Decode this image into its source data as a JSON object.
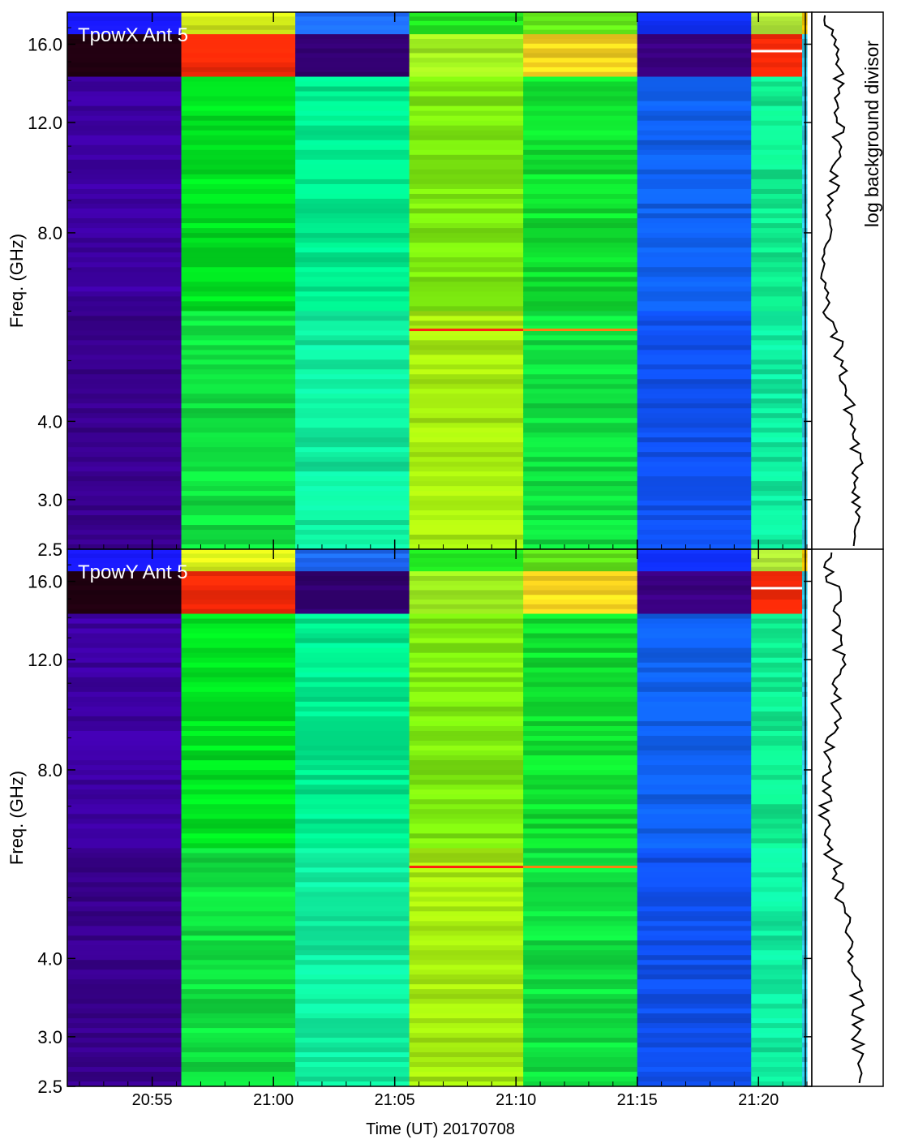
{
  "chart_data": {
    "type": "heatmap",
    "xlabel": "Time (UT) 20170708",
    "x_ticks": [
      "20:55",
      "21:00",
      "21:05",
      "21:10",
      "21:15",
      "21:20"
    ],
    "x_tick_minutes": [
      1255,
      1260,
      1265,
      1270,
      1275,
      1280
    ],
    "xlim_minutes": [
      1251.5,
      1282.2
    ],
    "ylabel": "Freq. (GHz)",
    "y_scale": "log",
    "ylim": [
      2.5,
      18
    ],
    "y_ticks": [
      "2.5",
      "3.0",
      "4.0",
      "8.0",
      "12.0",
      "16.0"
    ],
    "y_tick_values": [
      2.5,
      3.0,
      4.0,
      8.0,
      12.0,
      16.0
    ],
    "side_panel_label": "log background divisor",
    "time_blocks_minutes": [
      [
        1251.5,
        1256.2
      ],
      [
        1256.2,
        1260.9
      ],
      [
        1260.9,
        1265.6
      ],
      [
        1265.6,
        1270.3
      ],
      [
        1270.3,
        1275.0
      ],
      [
        1275.0,
        1279.7
      ],
      [
        1279.7,
        1281.8
      ],
      [
        1281.8,
        1282.0
      ]
    ],
    "panels": [
      {
        "title": "TpowX Ant 5",
        "block_colors": {
          "top": [
            "#1818ff",
            "#d8f21a",
            "#1e6aff",
            "#22ee22",
            "#66f01a",
            "#1030ff",
            "#b8f23a",
            "#ffd000"
          ],
          "hi": [
            "#200010",
            "#ff2a08",
            "#320070",
            "#a0f020",
            "#ffd820",
            "#3a0080",
            "#ff2a08",
            "#30c8e8"
          ],
          "mid": [
            "#3c00a0",
            "#00e020",
            "#00f090",
            "#80f010",
            "#10e030",
            "#1060f0",
            "#10f090",
            "#30c8e8"
          ],
          "low": [
            "#38008c",
            "#10e040",
            "#10f0a0",
            "#a8f010",
            "#10e040",
            "#1050f0",
            "#10f0a0",
            "#30c8e8"
          ]
        },
        "features": [
          {
            "label": "white line",
            "freq_ghz": 15.6,
            "block": 6,
            "color": "#ffffff"
          },
          {
            "label": "red line",
            "freq_ghz": 5.6,
            "block": 3,
            "color": "#ff2010"
          },
          {
            "label": "orange line",
            "freq_ghz": 5.6,
            "block": 4,
            "color": "#ff8010"
          }
        ]
      },
      {
        "title": "TpowY Ant 5",
        "block_colors": {
          "top": [
            "#1818ff",
            "#d8f21a",
            "#1e6aff",
            "#22ee22",
            "#66f01a",
            "#1030ff",
            "#b8f23a",
            "#ffd000"
          ],
          "hi": [
            "#200010",
            "#ff2a08",
            "#320070",
            "#a0f020",
            "#ffd820",
            "#3a0080",
            "#ff2a08",
            "#30c8e8"
          ],
          "mid": [
            "#3c00a0",
            "#00e020",
            "#00f090",
            "#80f010",
            "#10e030",
            "#1060f0",
            "#10f090",
            "#30c8e8"
          ],
          "low": [
            "#38008c",
            "#10e040",
            "#10f0a0",
            "#a8f010",
            "#10e040",
            "#1050f0",
            "#10f0a0",
            "#30c8e8"
          ]
        },
        "features": [
          {
            "label": "white line",
            "freq_ghz": 15.6,
            "block": 6,
            "color": "#ffffff"
          },
          {
            "label": "red line",
            "freq_ghz": 5.6,
            "block": 3,
            "color": "#ff2010"
          },
          {
            "label": "orange line",
            "freq_ghz": 5.6,
            "block": 4,
            "color": "#ff8010"
          }
        ]
      }
    ]
  }
}
